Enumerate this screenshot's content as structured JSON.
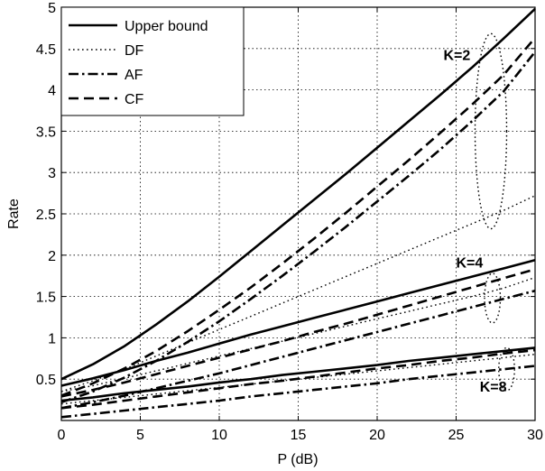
{
  "chart_data": {
    "type": "line",
    "xlabel": "P (dB)",
    "ylabel": "Rate",
    "xlim": [
      0,
      30
    ],
    "ylim": [
      0,
      5
    ],
    "xticks": [
      "0",
      "5",
      "10",
      "15",
      "20",
      "25",
      "30"
    ],
    "yticks": [
      "0.5",
      "1",
      "1.5",
      "2",
      "2.5",
      "3",
      "3.5",
      "4",
      "4.5",
      "5"
    ],
    "xtick_values": [
      0,
      5,
      10,
      15,
      20,
      25,
      30
    ],
    "ytick_values": [
      0.5,
      1,
      1.5,
      2,
      2.5,
      3,
      3.5,
      4,
      4.5,
      5
    ],
    "grid": true,
    "legend_position": "top-left",
    "legend": [
      {
        "label": "Upper bound",
        "style": "solid"
      },
      {
        "label": "DF",
        "style": "dotted"
      },
      {
        "label": "AF",
        "style": "dashdot"
      },
      {
        "label": "CF",
        "style": "dashed"
      }
    ],
    "x": [
      0,
      2,
      4,
      6,
      8,
      10,
      12,
      14,
      16,
      18,
      20,
      22,
      24,
      26,
      28,
      30
    ],
    "series": [
      {
        "group": "K=2",
        "style": "solid",
        "values": [
          0.5,
          0.68,
          0.9,
          1.16,
          1.44,
          1.74,
          2.05,
          2.36,
          2.67,
          2.98,
          3.3,
          3.62,
          3.94,
          4.27,
          4.62,
          4.98
        ]
      },
      {
        "group": "K=2",
        "style": "dotted",
        "values": [
          0.35,
          0.48,
          0.62,
          0.78,
          0.94,
          1.1,
          1.26,
          1.42,
          1.58,
          1.74,
          1.9,
          2.06,
          2.22,
          2.38,
          2.54,
          2.72
        ]
      },
      {
        "group": "K=2",
        "style": "dashdot",
        "values": [
          0.22,
          0.35,
          0.52,
          0.72,
          0.95,
          1.2,
          1.47,
          1.75,
          2.04,
          2.34,
          2.65,
          2.96,
          3.28,
          3.62,
          3.98,
          4.46
        ]
      },
      {
        "group": "K=2",
        "style": "dashed",
        "values": [
          0.3,
          0.45,
          0.63,
          0.84,
          1.08,
          1.34,
          1.61,
          1.9,
          2.2,
          2.51,
          2.83,
          3.15,
          3.48,
          3.82,
          4.18,
          4.63
        ]
      },
      {
        "group": "K=4",
        "style": "solid",
        "values": [
          0.42,
          0.51,
          0.61,
          0.72,
          0.82,
          0.93,
          1.04,
          1.14,
          1.24,
          1.34,
          1.44,
          1.54,
          1.64,
          1.74,
          1.84,
          1.94
        ]
      },
      {
        "group": "K=4",
        "style": "dotted",
        "values": [
          0.35,
          0.42,
          0.51,
          0.6,
          0.69,
          0.78,
          0.87,
          0.96,
          1.05,
          1.14,
          1.23,
          1.32,
          1.41,
          1.5,
          1.6,
          1.73
        ]
      },
      {
        "group": "K=4",
        "style": "dashdot",
        "values": [
          0.15,
          0.22,
          0.3,
          0.39,
          0.48,
          0.57,
          0.67,
          0.77,
          0.87,
          0.97,
          1.07,
          1.17,
          1.27,
          1.37,
          1.47,
          1.57
        ]
      },
      {
        "group": "K=4",
        "style": "dashed",
        "values": [
          0.29,
          0.37,
          0.46,
          0.56,
          0.66,
          0.76,
          0.86,
          0.96,
          1.07,
          1.17,
          1.28,
          1.39,
          1.5,
          1.61,
          1.72,
          1.83
        ]
      },
      {
        "group": "K=8",
        "style": "solid",
        "values": [
          0.24,
          0.28,
          0.33,
          0.37,
          0.41,
          0.46,
          0.5,
          0.55,
          0.59,
          0.63,
          0.67,
          0.72,
          0.76,
          0.8,
          0.84,
          0.88
        ]
      },
      {
        "group": "K=8",
        "style": "dotted",
        "values": [
          0.2,
          0.24,
          0.28,
          0.32,
          0.36,
          0.4,
          0.44,
          0.48,
          0.52,
          0.56,
          0.6,
          0.64,
          0.68,
          0.72,
          0.76,
          0.8
        ]
      },
      {
        "group": "K=8",
        "style": "dashdot",
        "values": [
          0.04,
          0.08,
          0.12,
          0.16,
          0.2,
          0.24,
          0.29,
          0.33,
          0.37,
          0.41,
          0.45,
          0.5,
          0.54,
          0.58,
          0.62,
          0.66
        ]
      },
      {
        "group": "K=8",
        "style": "dashed",
        "values": [
          0.15,
          0.19,
          0.24,
          0.29,
          0.34,
          0.39,
          0.44,
          0.48,
          0.53,
          0.58,
          0.63,
          0.67,
          0.72,
          0.76,
          0.81,
          0.85
        ]
      }
    ],
    "annotations": [
      {
        "text": "K=2",
        "x": 24.2,
        "y": 4.36
      },
      {
        "text": "K=4",
        "x": 25.0,
        "y": 1.85
      },
      {
        "text": "K=8",
        "x": 26.5,
        "y": 0.35
      }
    ],
    "ellipses": [
      {
        "group": "K=2",
        "cx": 27.2,
        "cy": 3.5,
        "rx": 1.0,
        "ry": 1.18
      },
      {
        "group": "K=4",
        "cx": 27.3,
        "cy": 1.48,
        "rx": 0.5,
        "ry": 0.3
      },
      {
        "group": "K=8",
        "cx": 28.2,
        "cy": 0.62,
        "rx": 0.5,
        "ry": 0.26
      }
    ]
  }
}
